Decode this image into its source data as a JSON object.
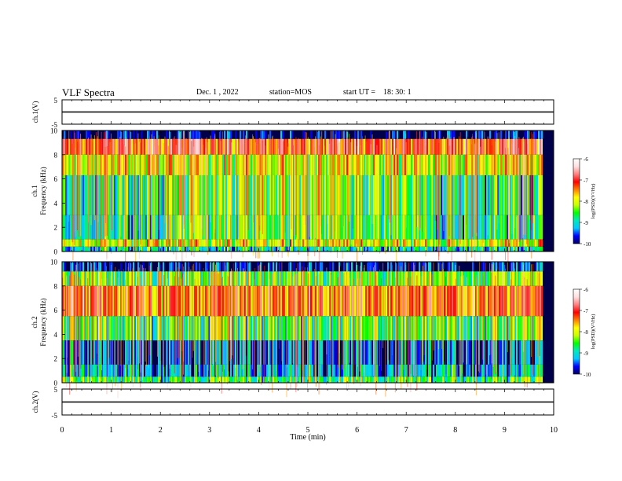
{
  "header": {
    "title": "VLF Spectra",
    "date": "Dec. 1 , 2022",
    "station": "station=MOS",
    "start_label": "start UT =",
    "start_time": "18: 30: 1"
  },
  "colorscale": {
    "stops": [
      "#000060",
      "#0000ff",
      "#00c8ff",
      "#00e8c0",
      "#00ff00",
      "#c8ff00",
      "#ffff00",
      "#ff8000",
      "#ff0000",
      "#ff8080",
      "#ffe0e0",
      "#ffffff"
    ]
  },
  "chart_data": [
    {
      "type": "line",
      "ylabel": "ch.1(V)",
      "ylim": [
        -5,
        5
      ],
      "yticks": [
        "5",
        "-5"
      ],
      "x": [
        0,
        10
      ],
      "values": [
        0,
        0
      ]
    },
    {
      "type": "heatmap",
      "ylabel_line1": "ch.1",
      "ylabel_line2": "Frequency (kHz)",
      "ylim": [
        0,
        10
      ],
      "yticks": [
        "0",
        "2",
        "4",
        "6",
        "8",
        "10"
      ],
      "xlim": [
        0,
        9.8
      ],
      "colorbar": {
        "label": "log(PSD)(V²/Hz)",
        "range": [
          -10,
          -6
        ],
        "ticks": [
          "-6",
          "-7",
          "-8",
          "-9",
          "-10"
        ]
      },
      "bands": [
        {
          "fmin": 9.3,
          "fmax": 10,
          "level": 0.02
        },
        {
          "fmin": 8.0,
          "fmax": 9.3,
          "level": 0.72
        },
        {
          "fmin": 6.3,
          "fmax": 8.0,
          "level": 0.5
        },
        {
          "fmin": 3.0,
          "fmax": 6.3,
          "level": 0.3
        },
        {
          "fmin": 1.0,
          "fmax": 3.0,
          "level": 0.27
        },
        {
          "fmin": 0.4,
          "fmax": 1.0,
          "level": 0.5
        },
        {
          "fmin": 0.0,
          "fmax": 0.4,
          "level": 0.25
        }
      ],
      "activity": [
        {
          "t0": 0.0,
          "t1": 2.1,
          "level": 0.0
        },
        {
          "t0": 2.1,
          "t1": 5.6,
          "level": 0.12
        },
        {
          "t0": 5.6,
          "t1": 7.6,
          "level": 0.08
        },
        {
          "t0": 7.6,
          "t1": 9.8,
          "level": 0.0
        }
      ]
    },
    {
      "type": "heatmap",
      "ylabel_line1": "ch.2",
      "ylabel_line2": "Frequency (kHz)",
      "ylim": [
        0,
        10
      ],
      "yticks": [
        "0",
        "2",
        "4",
        "6",
        "8",
        "10"
      ],
      "xlim": [
        0,
        9.8
      ],
      "colorbar": {
        "label": "log(PSD)(V²/Hz)",
        "range": [
          -10,
          -6
        ],
        "ticks": [
          "-6",
          "-7",
          "-8",
          "-9",
          "-10"
        ]
      },
      "bands": [
        {
          "fmin": 9.2,
          "fmax": 10,
          "level": 0.05
        },
        {
          "fmin": 8.0,
          "fmax": 9.2,
          "level": 0.4
        },
        {
          "fmin": 5.5,
          "fmax": 8.0,
          "level": 0.66
        },
        {
          "fmin": 3.5,
          "fmax": 5.5,
          "level": 0.36
        },
        {
          "fmin": 1.5,
          "fmax": 3.5,
          "level": 0.12
        },
        {
          "fmin": 0.5,
          "fmax": 1.5,
          "level": 0.2
        },
        {
          "fmin": 0.0,
          "fmax": 0.5,
          "level": 0.35
        }
      ],
      "activity": [
        {
          "t0": 0.0,
          "t1": 9.8,
          "level": 0.0
        }
      ]
    },
    {
      "type": "line",
      "ylabel": "ch.2(V)",
      "ylim": [
        -5,
        5
      ],
      "yticks": [
        "5",
        "-5"
      ],
      "x": [
        0,
        10
      ],
      "values": [
        0,
        0
      ]
    }
  ],
  "xaxis": {
    "label": "Time (min)",
    "xlim": [
      0,
      10
    ],
    "ticks": [
      "0",
      "1",
      "2",
      "3",
      "4",
      "5",
      "6",
      "7",
      "8",
      "9",
      "10"
    ]
  }
}
